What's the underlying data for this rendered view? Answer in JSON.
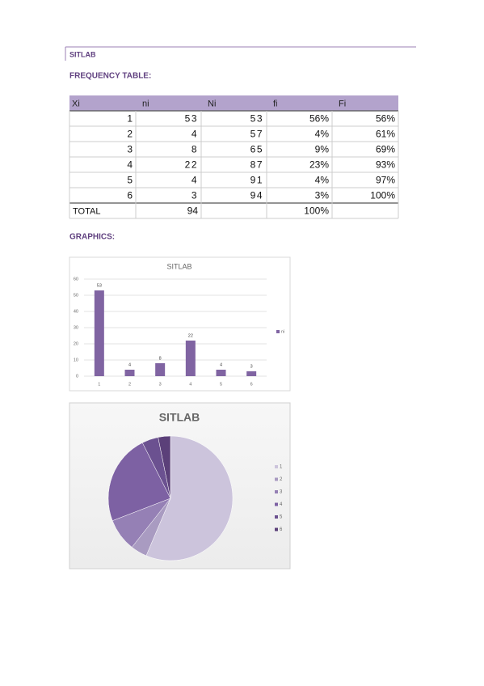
{
  "header": {
    "title": "SITLAB"
  },
  "sections": {
    "table_title": "FREQUENCY TABLE:",
    "graphics_title": "GRAPHICS:"
  },
  "table": {
    "columns": [
      "Xi",
      "ni",
      "Ni",
      "fi",
      "Fi"
    ],
    "rows": [
      [
        1,
        53,
        53,
        "56%",
        "56%"
      ],
      [
        2,
        4,
        57,
        "4%",
        "61%"
      ],
      [
        3,
        8,
        65,
        "9%",
        "69%"
      ],
      [
        4,
        22,
        87,
        "23%",
        "93%"
      ],
      [
        5,
        4,
        91,
        "4%",
        "97%"
      ],
      [
        6,
        3,
        94,
        "3%",
        "100%"
      ]
    ],
    "total": {
      "label": "TOTAL",
      "ni": 94,
      "fi": "100%"
    }
  },
  "chart_data": [
    {
      "type": "bar",
      "title": "SITLAB",
      "categories": [
        "1",
        "2",
        "3",
        "4",
        "5",
        "6"
      ],
      "series": [
        {
          "name": "ni",
          "color": "#8064a2",
          "values": [
            53,
            4,
            8,
            22,
            4,
            3
          ]
        }
      ],
      "ylim": [
        0,
        60
      ],
      "yticks": [
        0,
        10,
        20,
        30,
        40,
        50,
        60
      ],
      "grid": true,
      "legend": "right",
      "data_labels": true
    },
    {
      "type": "pie",
      "title": "SITLAB",
      "categories": [
        "1",
        "2",
        "3",
        "4",
        "5",
        "6"
      ],
      "values": [
        53,
        4,
        8,
        22,
        4,
        3
      ],
      "colors": [
        "#ccc4dc",
        "#a99bc1",
        "#9580b5",
        "#7d61a3",
        "#6b5190",
        "#5b4079"
      ],
      "legend": "right"
    }
  ]
}
